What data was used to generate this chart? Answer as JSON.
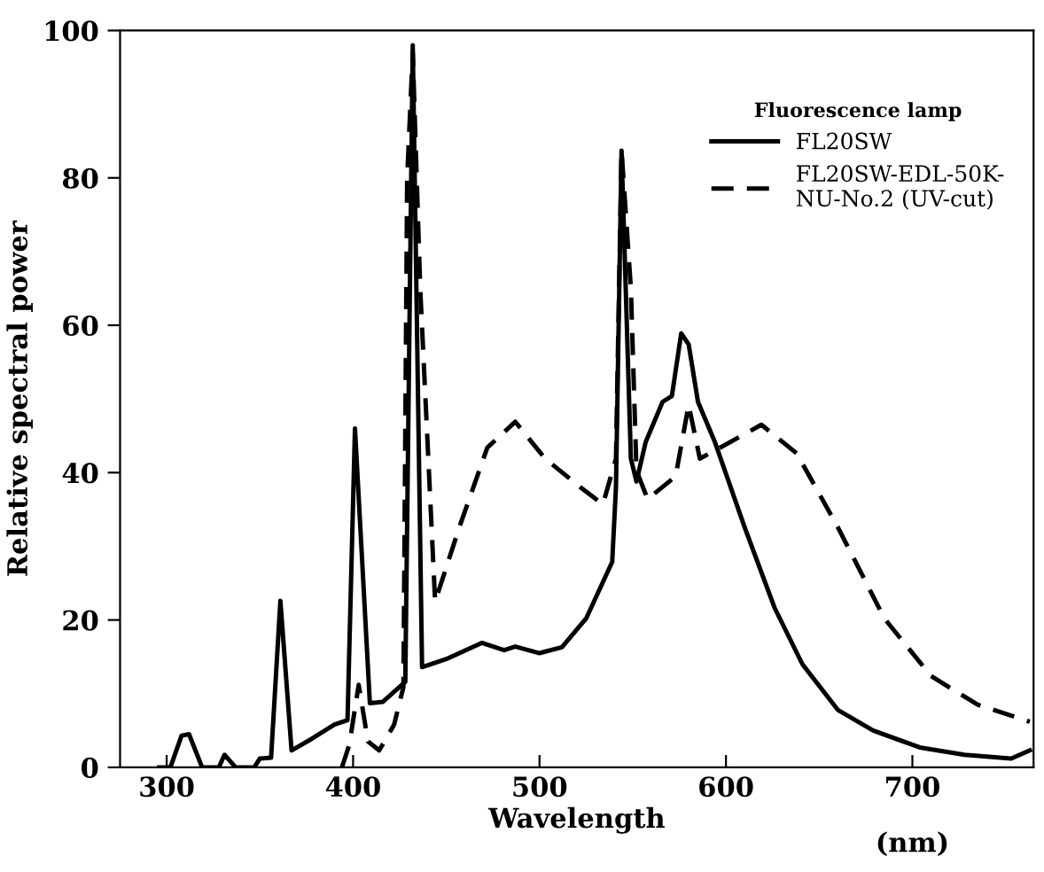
{
  "chart_data": {
    "type": "line",
    "xlabel": "Wavelength",
    "ylabel": "Relative spectral power",
    "legend_title": "Fluorescence lamp",
    "annotations": [
      "(nm)"
    ],
    "xlim": [
      275,
      765
    ],
    "ylim": [
      0,
      100
    ],
    "xticks": [
      300,
      400,
      500,
      600,
      700
    ],
    "yticks": [
      0,
      20,
      40,
      60,
      80,
      100
    ],
    "grid": false,
    "legend": "top right",
    "marker": "none",
    "series": [
      {
        "name": "FL20SW",
        "color": "#000000",
        "line_style": "solid",
        "x": [
          296,
          302,
          308,
          312,
          319,
          328,
          331,
          337,
          347,
          350,
          356,
          361,
          367,
          378,
          390,
          397,
          401,
          409,
          416,
          428,
          432,
          437,
          450,
          469,
          481,
          487,
          500,
          512,
          525,
          539,
          541,
          544,
          549,
          552,
          557,
          566,
          571,
          576,
          580,
          585,
          594,
          610,
          626,
          641,
          660,
          679,
          704,
          728,
          753,
          763
        ],
        "values": [
          0,
          0,
          4.3,
          4.5,
          0,
          0,
          1.7,
          0,
          0,
          1.2,
          1.3,
          22.6,
          2.3,
          3.9,
          5.8,
          6.4,
          46,
          8.7,
          8.9,
          11.6,
          98,
          13.6,
          14.7,
          16.9,
          15.9,
          16.4,
          15.5,
          16.3,
          20.2,
          27.9,
          38,
          83.7,
          41.9,
          38.8,
          44.2,
          49.6,
          50.4,
          58.9,
          57.4,
          49.6,
          44.2,
          32.6,
          21.7,
          14,
          7.8,
          5,
          2.7,
          1.7,
          1.2,
          2.3
        ]
      },
      {
        "name": "FL20SW-EDL-50K-\nNU-No.2 (UV-cut)",
        "color": "#000000",
        "line_style": "dashed",
        "x": [
          394,
          398,
          403,
          408,
          414,
          422,
          427,
          429,
          432,
          436,
          444,
          457,
          472,
          487,
          503,
          522,
          534,
          541,
          544,
          549,
          552,
          558,
          573,
          580,
          586,
          597,
          619,
          638,
          660,
          685,
          710,
          735,
          763
        ],
        "values": [
          0,
          3.1,
          11.2,
          3.5,
          2.3,
          5.8,
          10.9,
          80,
          97,
          65,
          22.5,
          32.6,
          43.4,
          46.9,
          41.9,
          38,
          35.7,
          41.9,
          83.7,
          65,
          40.3,
          36.4,
          39.5,
          49.2,
          41.9,
          43.4,
          46.5,
          42.6,
          32.6,
          20.2,
          12.4,
          8.5,
          6.2
        ]
      }
    ]
  }
}
